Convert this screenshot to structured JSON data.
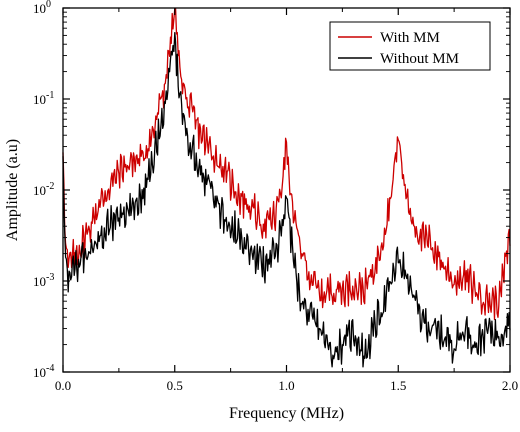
{
  "chart_data": {
    "type": "line",
    "title": "",
    "xlabel": "Frequency (MHz)",
    "ylabel": "Amplitude (a.u)",
    "xlim": [
      0,
      2.0
    ],
    "ylim": [
      0.0001,
      1
    ],
    "y_scale": "log",
    "x_ticks": [
      "0.0",
      "0.5",
      "1.0",
      "1.5",
      "2.0"
    ],
    "y_ticks": [
      {
        "value": 0.0001,
        "base": "10",
        "exp": "-4"
      },
      {
        "value": 0.001,
        "base": "10",
        "exp": "-3"
      },
      {
        "value": 0.01,
        "base": "10",
        "exp": "-2"
      },
      {
        "value": 0.1,
        "base": "10",
        "exp": "-1"
      },
      {
        "value": 1,
        "base": "10",
        "exp": "0"
      }
    ],
    "grid": false,
    "legend_position": "top-right",
    "series": [
      {
        "name": "With MM",
        "color": "#cc0000",
        "x": [
          0.0,
          0.01,
          0.02,
          0.05,
          0.1,
          0.15,
          0.2,
          0.25,
          0.3,
          0.35,
          0.4,
          0.45,
          0.48,
          0.5,
          0.52,
          0.55,
          0.6,
          0.65,
          0.7,
          0.75,
          0.8,
          0.85,
          0.9,
          0.95,
          0.98,
          1.0,
          1.02,
          1.05,
          1.1,
          1.15,
          1.2,
          1.25,
          1.3,
          1.35,
          1.4,
          1.45,
          1.48,
          1.5,
          1.52,
          1.55,
          1.6,
          1.65,
          1.7,
          1.75,
          1.8,
          1.85,
          1.9,
          1.95,
          2.0
        ],
        "y": [
          0.03,
          0.003,
          0.0015,
          0.0018,
          0.003,
          0.006,
          0.01,
          0.016,
          0.02,
          0.022,
          0.04,
          0.12,
          0.4,
          0.95,
          0.25,
          0.1,
          0.05,
          0.03,
          0.02,
          0.012,
          0.008,
          0.006,
          0.004,
          0.005,
          0.012,
          0.032,
          0.008,
          0.003,
          0.0012,
          0.0007,
          0.0008,
          0.0008,
          0.0009,
          0.0008,
          0.0015,
          0.005,
          0.015,
          0.04,
          0.015,
          0.006,
          0.003,
          0.0025,
          0.0015,
          0.001,
          0.0011,
          0.0008,
          0.0006,
          0.0006,
          0.003
        ]
      },
      {
        "name": "Without MM",
        "color": "#000000",
        "x": [
          0.0,
          0.01,
          0.02,
          0.05,
          0.1,
          0.15,
          0.2,
          0.25,
          0.3,
          0.35,
          0.4,
          0.45,
          0.48,
          0.5,
          0.52,
          0.55,
          0.6,
          0.65,
          0.7,
          0.75,
          0.8,
          0.85,
          0.9,
          0.95,
          0.98,
          1.0,
          1.02,
          1.05,
          1.1,
          1.15,
          1.2,
          1.25,
          1.3,
          1.35,
          1.4,
          1.45,
          1.48,
          1.5,
          1.52,
          1.55,
          1.6,
          1.65,
          1.7,
          1.75,
          1.8,
          1.85,
          1.9,
          1.95,
          2.0
        ],
        "y": [
          0.02,
          0.002,
          0.001,
          0.0013,
          0.002,
          0.003,
          0.004,
          0.005,
          0.006,
          0.008,
          0.02,
          0.07,
          0.2,
          0.48,
          0.1,
          0.04,
          0.02,
          0.012,
          0.006,
          0.004,
          0.003,
          0.002,
          0.0015,
          0.002,
          0.004,
          0.009,
          0.003,
          0.0008,
          0.0004,
          0.0003,
          0.00016,
          0.0002,
          0.00028,
          0.00015,
          0.00035,
          0.0007,
          0.0012,
          0.0018,
          0.0014,
          0.0009,
          0.0004,
          0.0003,
          0.00025,
          0.0002,
          0.0003,
          0.0002,
          0.0003,
          0.00025,
          0.0004
        ]
      }
    ]
  }
}
